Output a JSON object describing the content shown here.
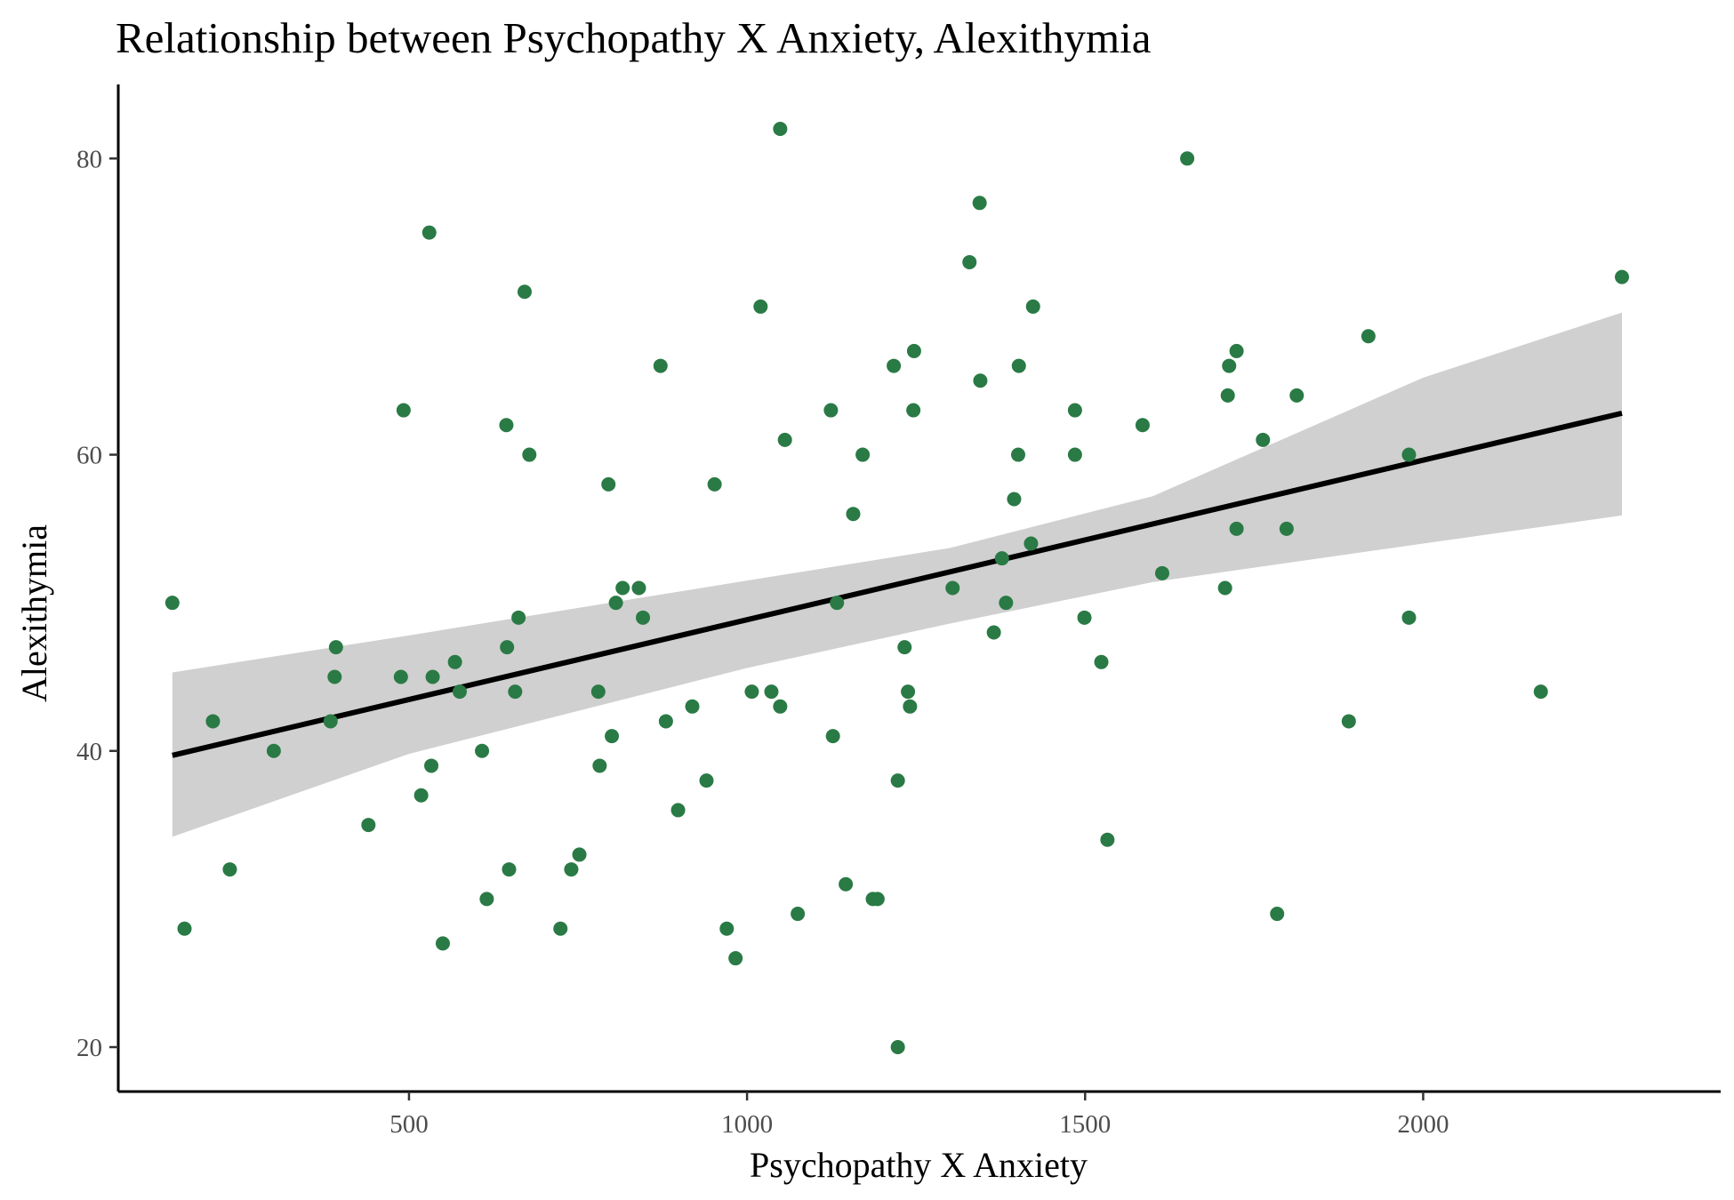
{
  "chart_data": {
    "type": "scatter",
    "title": "Relationship between Psychopathy X Anxiety, Alexithymia",
    "xlabel": "Psychopathy X Anxiety",
    "ylabel": "Alexithymia",
    "xlim": [
      70,
      2440
    ],
    "ylim": [
      17,
      85
    ],
    "xticks": [
      500,
      1000,
      1500,
      2000
    ],
    "yticks": [
      20,
      40,
      60,
      80
    ],
    "grid": false,
    "point_color": "#2a7a45",
    "band_color": "#d0d0d0",
    "line_color": "#000000",
    "points": [
      [
        150,
        50
      ],
      [
        168,
        28
      ],
      [
        210,
        42
      ],
      [
        235,
        32
      ],
      [
        300,
        40
      ],
      [
        384,
        42
      ],
      [
        390,
        45
      ],
      [
        392,
        47
      ],
      [
        440,
        35
      ],
      [
        488,
        45
      ],
      [
        492,
        63
      ],
      [
        518,
        37
      ],
      [
        530,
        75
      ],
      [
        533,
        39
      ],
      [
        535,
        45
      ],
      [
        550,
        27
      ],
      [
        568,
        46
      ],
      [
        575,
        44
      ],
      [
        608,
        40
      ],
      [
        615,
        30
      ],
      [
        644,
        62
      ],
      [
        645,
        47
      ],
      [
        648,
        32
      ],
      [
        657,
        44
      ],
      [
        662,
        49
      ],
      [
        671,
        71
      ],
      [
        678,
        60
      ],
      [
        724,
        28
      ],
      [
        740,
        32
      ],
      [
        752,
        33
      ],
      [
        780,
        44
      ],
      [
        782,
        39
      ],
      [
        795,
        58
      ],
      [
        800,
        41
      ],
      [
        806,
        50
      ],
      [
        816,
        51
      ],
      [
        840,
        51
      ],
      [
        846,
        49
      ],
      [
        872,
        66
      ],
      [
        880,
        42
      ],
      [
        898,
        36
      ],
      [
        919,
        43
      ],
      [
        940,
        38
      ],
      [
        952,
        58
      ],
      [
        970,
        28
      ],
      [
        983,
        26
      ],
      [
        1007,
        44
      ],
      [
        1020,
        70
      ],
      [
        1036,
        44
      ],
      [
        1049,
        82
      ],
      [
        1049,
        43
      ],
      [
        1056,
        61
      ],
      [
        1075,
        29
      ],
      [
        1124,
        63
      ],
      [
        1127,
        41
      ],
      [
        1133,
        50
      ],
      [
        1146,
        31
      ],
      [
        1157,
        56
      ],
      [
        1171,
        60
      ],
      [
        1186,
        30
      ],
      [
        1193,
        30
      ],
      [
        1217,
        66
      ],
      [
        1223,
        20
      ],
      [
        1223,
        38
      ],
      [
        1233,
        47
      ],
      [
        1238,
        44
      ],
      [
        1241,
        43
      ],
      [
        1246,
        63
      ],
      [
        1247,
        67
      ],
      [
        1304,
        51
      ],
      [
        1329,
        73
      ],
      [
        1344,
        77
      ],
      [
        1345,
        65
      ],
      [
        1365,
        48
      ],
      [
        1377,
        53
      ],
      [
        1383,
        50
      ],
      [
        1395,
        57
      ],
      [
        1401,
        60
      ],
      [
        1402,
        66
      ],
      [
        1420,
        54
      ],
      [
        1423,
        70
      ],
      [
        1485,
        63
      ],
      [
        1485,
        60
      ],
      [
        1499,
        49
      ],
      [
        1524,
        46
      ],
      [
        1533,
        34
      ],
      [
        1585,
        62
      ],
      [
        1614,
        52
      ],
      [
        1651,
        80
      ],
      [
        1707,
        51
      ],
      [
        1711,
        64
      ],
      [
        1713,
        66
      ],
      [
        1724,
        67
      ],
      [
        1724,
        55
      ],
      [
        1763,
        61
      ],
      [
        1784,
        29
      ],
      [
        1798,
        55
      ],
      [
        1813,
        64
      ],
      [
        1890,
        42
      ],
      [
        1919,
        68
      ],
      [
        1979,
        60
      ],
      [
        1979,
        49
      ],
      [
        2174,
        44
      ],
      [
        2294,
        72
      ]
    ],
    "fit_line": {
      "x": [
        150,
        2294
      ],
      "y": [
        39.7,
        62.8
      ]
    },
    "confidence_band": {
      "x": [
        150,
        500,
        1000,
        1300,
        1600,
        2000,
        2294
      ],
      "lower": [
        34.2,
        39.8,
        45.6,
        48.6,
        51.4,
        54.0,
        55.9
      ],
      "upper": [
        45.3,
        47.8,
        51.5,
        53.7,
        57.2,
        65.2,
        69.6
      ]
    }
  }
}
